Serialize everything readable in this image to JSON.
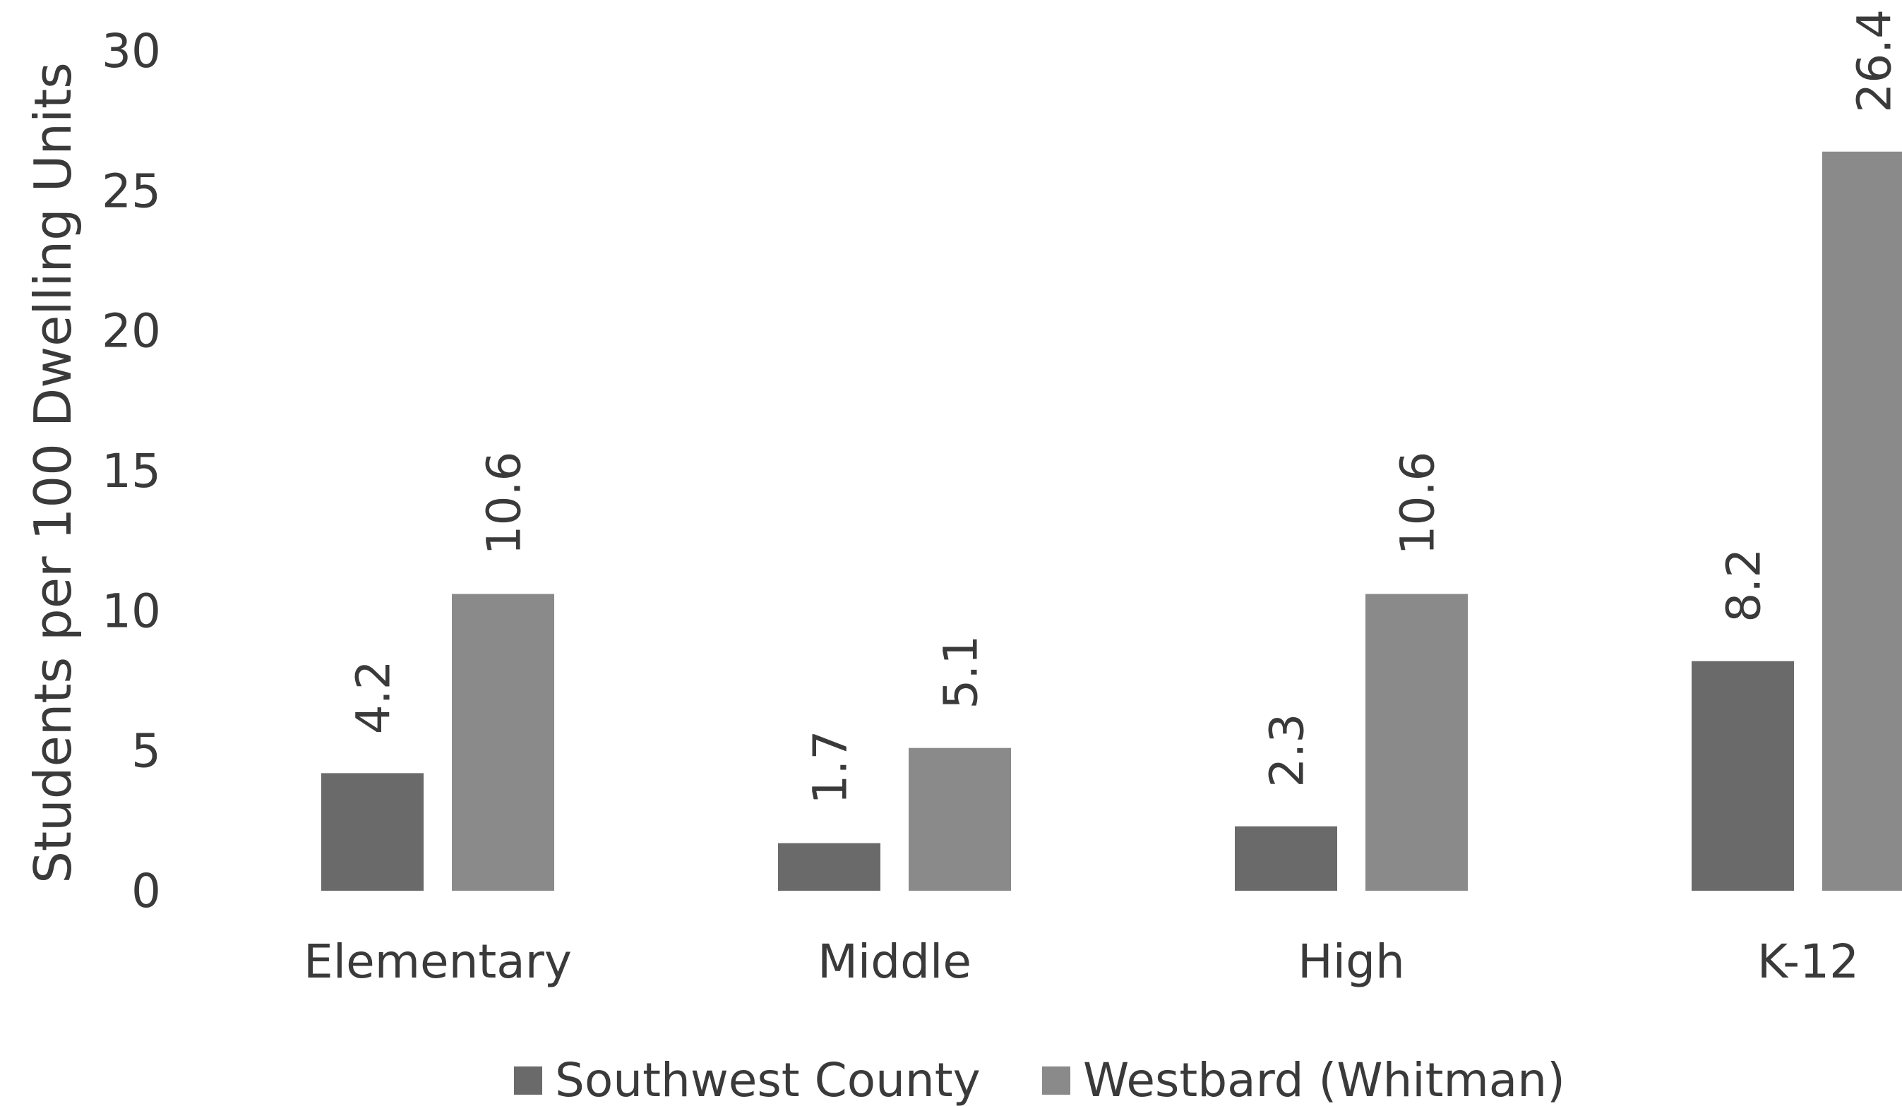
{
  "chart_data": {
    "type": "bar",
    "title": "",
    "xlabel": "",
    "ylabel": "Students per 100 Dwelling Units",
    "categories": [
      "Elementary",
      "Middle",
      "High",
      "K-12"
    ],
    "series": [
      {
        "name": "Southwest County",
        "values": [
          4.2,
          1.7,
          2.3,
          8.2
        ],
        "color": "#6a6a6a"
      },
      {
        "name": "Westbard (Whitman)",
        "values": [
          10.6,
          5.1,
          10.6,
          26.4
        ],
        "color": "#8a8a8a"
      }
    ],
    "ylim": [
      0,
      30
    ],
    "yticks": [
      0,
      5,
      10,
      15,
      20,
      25,
      30
    ],
    "grid": false,
    "legend_position": "bottom",
    "data_labels": [
      "4.2",
      "1.7",
      "2.3",
      "8.2",
      "10.6",
      "5.1",
      "10.6",
      "26.4"
    ],
    "tick_labels": [
      "0",
      "5",
      "10",
      "15",
      "20",
      "25",
      "30"
    ]
  }
}
